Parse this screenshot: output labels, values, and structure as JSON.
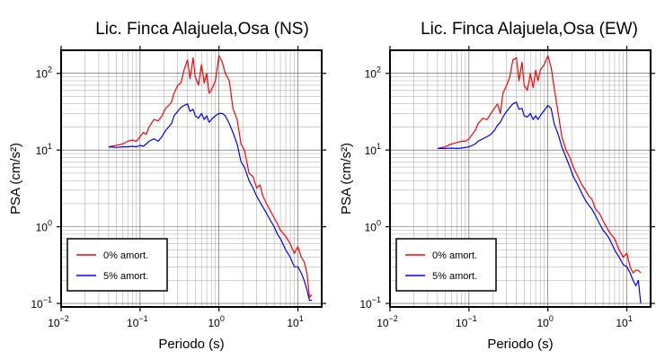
{
  "chart_data": [
    {
      "type": "line",
      "title": "Lic. Finca Alajuela,Osa (NS)",
      "xlabel": "Periodo (s)",
      "ylabel": "PSA (cm/s²)",
      "xscale": "log",
      "yscale": "log",
      "xlim": [
        0.01,
        20
      ],
      "ylim": [
        0.09,
        200
      ],
      "grid": true,
      "legend": "bottom-left",
      "x_ticks": [
        {
          "base": "10",
          "exp": "−2"
        },
        {
          "base": "10",
          "exp": "−1"
        },
        {
          "base": "10",
          "exp": "0"
        },
        {
          "base": "10",
          "exp": "1"
        }
      ],
      "y_ticks": [
        {
          "base": "10",
          "exp": "−1"
        },
        {
          "base": "10",
          "exp": "0"
        },
        {
          "base": "10",
          "exp": "1"
        },
        {
          "base": "10",
          "exp": "2"
        }
      ],
      "series": [
        {
          "name": "0% amort.",
          "color": "#ff0000",
          "x": [
            0.04,
            0.05,
            0.06,
            0.07,
            0.08,
            0.09,
            0.1,
            0.11,
            0.12,
            0.13,
            0.15,
            0.17,
            0.19,
            0.21,
            0.23,
            0.25,
            0.27,
            0.3,
            0.33,
            0.36,
            0.4,
            0.43,
            0.47,
            0.5,
            0.55,
            0.6,
            0.65,
            0.7,
            0.75,
            0.8,
            0.9,
            1.0,
            1.1,
            1.2,
            1.35,
            1.5,
            1.7,
            1.9,
            2.1,
            2.4,
            2.7,
            3.0,
            3.3,
            3.6,
            4.0,
            4.5,
            5.0,
            5.5,
            6.0,
            7.0,
            8.0,
            9.0,
            10.0,
            11.0,
            12.0,
            13.0,
            14.0,
            15.0
          ],
          "y": [
            11,
            11.5,
            12,
            13,
            13.5,
            13,
            15,
            17,
            16,
            20,
            25,
            24,
            28,
            35,
            38,
            42,
            55,
            70,
            75,
            110,
            150,
            85,
            160,
            90,
            70,
            130,
            75,
            100,
            55,
            60,
            80,
            170,
            140,
            100,
            80,
            35,
            25,
            12,
            10,
            5,
            4.5,
            3.2,
            3.5,
            2.5,
            2,
            1.6,
            1.3,
            1.1,
            0.9,
            0.75,
            0.6,
            0.45,
            0.55,
            0.4,
            0.35,
            0.25,
            0.12,
            0.13
          ]
        },
        {
          "name": "5% amort.",
          "color": "#0000ff",
          "x": [
            0.04,
            0.05,
            0.06,
            0.07,
            0.08,
            0.09,
            0.1,
            0.11,
            0.12,
            0.13,
            0.15,
            0.17,
            0.19,
            0.21,
            0.23,
            0.25,
            0.27,
            0.3,
            0.33,
            0.36,
            0.4,
            0.43,
            0.47,
            0.5,
            0.55,
            0.6,
            0.65,
            0.7,
            0.75,
            0.8,
            0.9,
            1.0,
            1.1,
            1.2,
            1.35,
            1.5,
            1.7,
            1.9,
            2.1,
            2.4,
            2.7,
            3.0,
            3.3,
            3.6,
            4.0,
            4.5,
            5.0,
            5.5,
            6.0,
            7.0,
            8.0,
            9.0,
            10.0,
            11.0,
            12.0,
            13.0,
            14.0,
            15.0
          ],
          "y": [
            11,
            10.8,
            11,
            11,
            11.2,
            11,
            11.5,
            11.2,
            12,
            13,
            14,
            13,
            15,
            18,
            20,
            22,
            28,
            32,
            36,
            38,
            40,
            32,
            34,
            28,
            26,
            30,
            25,
            28,
            23,
            25,
            28,
            30,
            30,
            28,
            22,
            17,
            12,
            7,
            6,
            4,
            3.2,
            2.5,
            2.1,
            1.8,
            1.5,
            1.2,
            1.0,
            0.8,
            0.7,
            0.5,
            0.4,
            0.3,
            0.3,
            0.25,
            0.2,
            0.15,
            0.11,
            0.11
          ]
        }
      ]
    },
    {
      "type": "line",
      "title": "Lic. Finca Alajuela,Osa (EW)",
      "xlabel": "Periodo (s)",
      "ylabel": "PSA (cm/s²)",
      "xscale": "log",
      "yscale": "log",
      "xlim": [
        0.01,
        20
      ],
      "ylim": [
        0.09,
        200
      ],
      "grid": true,
      "legend": "bottom-left",
      "x_ticks": [
        {
          "base": "10",
          "exp": "−2"
        },
        {
          "base": "10",
          "exp": "−1"
        },
        {
          "base": "10",
          "exp": "0"
        },
        {
          "base": "10",
          "exp": "1"
        }
      ],
      "y_ticks": [
        {
          "base": "10",
          "exp": "−1"
        },
        {
          "base": "10",
          "exp": "0"
        },
        {
          "base": "10",
          "exp": "1"
        },
        {
          "base": "10",
          "exp": "2"
        }
      ],
      "series": [
        {
          "name": "0% amort.",
          "color": "#ff0000",
          "x": [
            0.04,
            0.05,
            0.06,
            0.07,
            0.08,
            0.09,
            0.1,
            0.11,
            0.12,
            0.13,
            0.15,
            0.17,
            0.19,
            0.21,
            0.23,
            0.25,
            0.27,
            0.3,
            0.33,
            0.36,
            0.4,
            0.43,
            0.47,
            0.5,
            0.55,
            0.6,
            0.65,
            0.7,
            0.75,
            0.8,
            0.9,
            1.0,
            1.1,
            1.2,
            1.35,
            1.5,
            1.7,
            1.9,
            2.1,
            2.4,
            2.7,
            3.0,
            3.3,
            3.6,
            4.0,
            4.5,
            5.0,
            5.5,
            6.0,
            7.0,
            8.0,
            9.0,
            10.0,
            11.0,
            12.0,
            13.0,
            14.0,
            15.0
          ],
          "y": [
            10.5,
            11,
            12,
            12.5,
            13,
            13,
            14,
            16,
            18,
            22,
            26,
            25,
            30,
            35,
            40,
            30,
            55,
            70,
            90,
            150,
            160,
            80,
            140,
            70,
            60,
            100,
            65,
            110,
            80,
            110,
            130,
            170,
            120,
            65,
            30,
            15,
            10,
            8,
            6,
            4.5,
            3.5,
            3,
            2.5,
            2.3,
            1.7,
            1.5,
            1.2,
            1.0,
            0.85,
            0.7,
            0.5,
            0.4,
            0.45,
            0.3,
            0.25,
            0.27,
            0.27,
            0.25
          ]
        },
        {
          "name": "5% amort.",
          "color": "#0000ff",
          "x": [
            0.04,
            0.05,
            0.06,
            0.07,
            0.08,
            0.09,
            0.1,
            0.11,
            0.12,
            0.13,
            0.15,
            0.17,
            0.19,
            0.21,
            0.23,
            0.25,
            0.27,
            0.3,
            0.33,
            0.36,
            0.4,
            0.43,
            0.47,
            0.5,
            0.55,
            0.6,
            0.65,
            0.7,
            0.75,
            0.8,
            0.9,
            1.0,
            1.1,
            1.2,
            1.35,
            1.5,
            1.7,
            1.9,
            2.1,
            2.4,
            2.7,
            3.0,
            3.3,
            3.6,
            4.0,
            4.5,
            5.0,
            5.5,
            6.0,
            7.0,
            8.0,
            9.0,
            10.0,
            11.0,
            12.0,
            13.0,
            14.0,
            15.0
          ],
          "y": [
            10.5,
            10.5,
            10.6,
            10.5,
            10.6,
            10.8,
            11,
            11.5,
            12,
            13,
            14,
            15,
            16,
            18,
            21,
            23,
            27,
            32,
            36,
            40,
            42,
            34,
            35,
            28,
            27,
            30,
            25,
            28,
            25,
            28,
            33,
            38,
            35,
            22,
            16,
            11,
            8,
            6,
            4.5,
            3.5,
            2.7,
            2.2,
            1.9,
            1.7,
            1.4,
            1.1,
            0.9,
            0.8,
            0.7,
            0.5,
            0.4,
            0.32,
            0.3,
            0.25,
            0.2,
            0.17,
            0.2,
            0.1
          ]
        }
      ]
    }
  ]
}
